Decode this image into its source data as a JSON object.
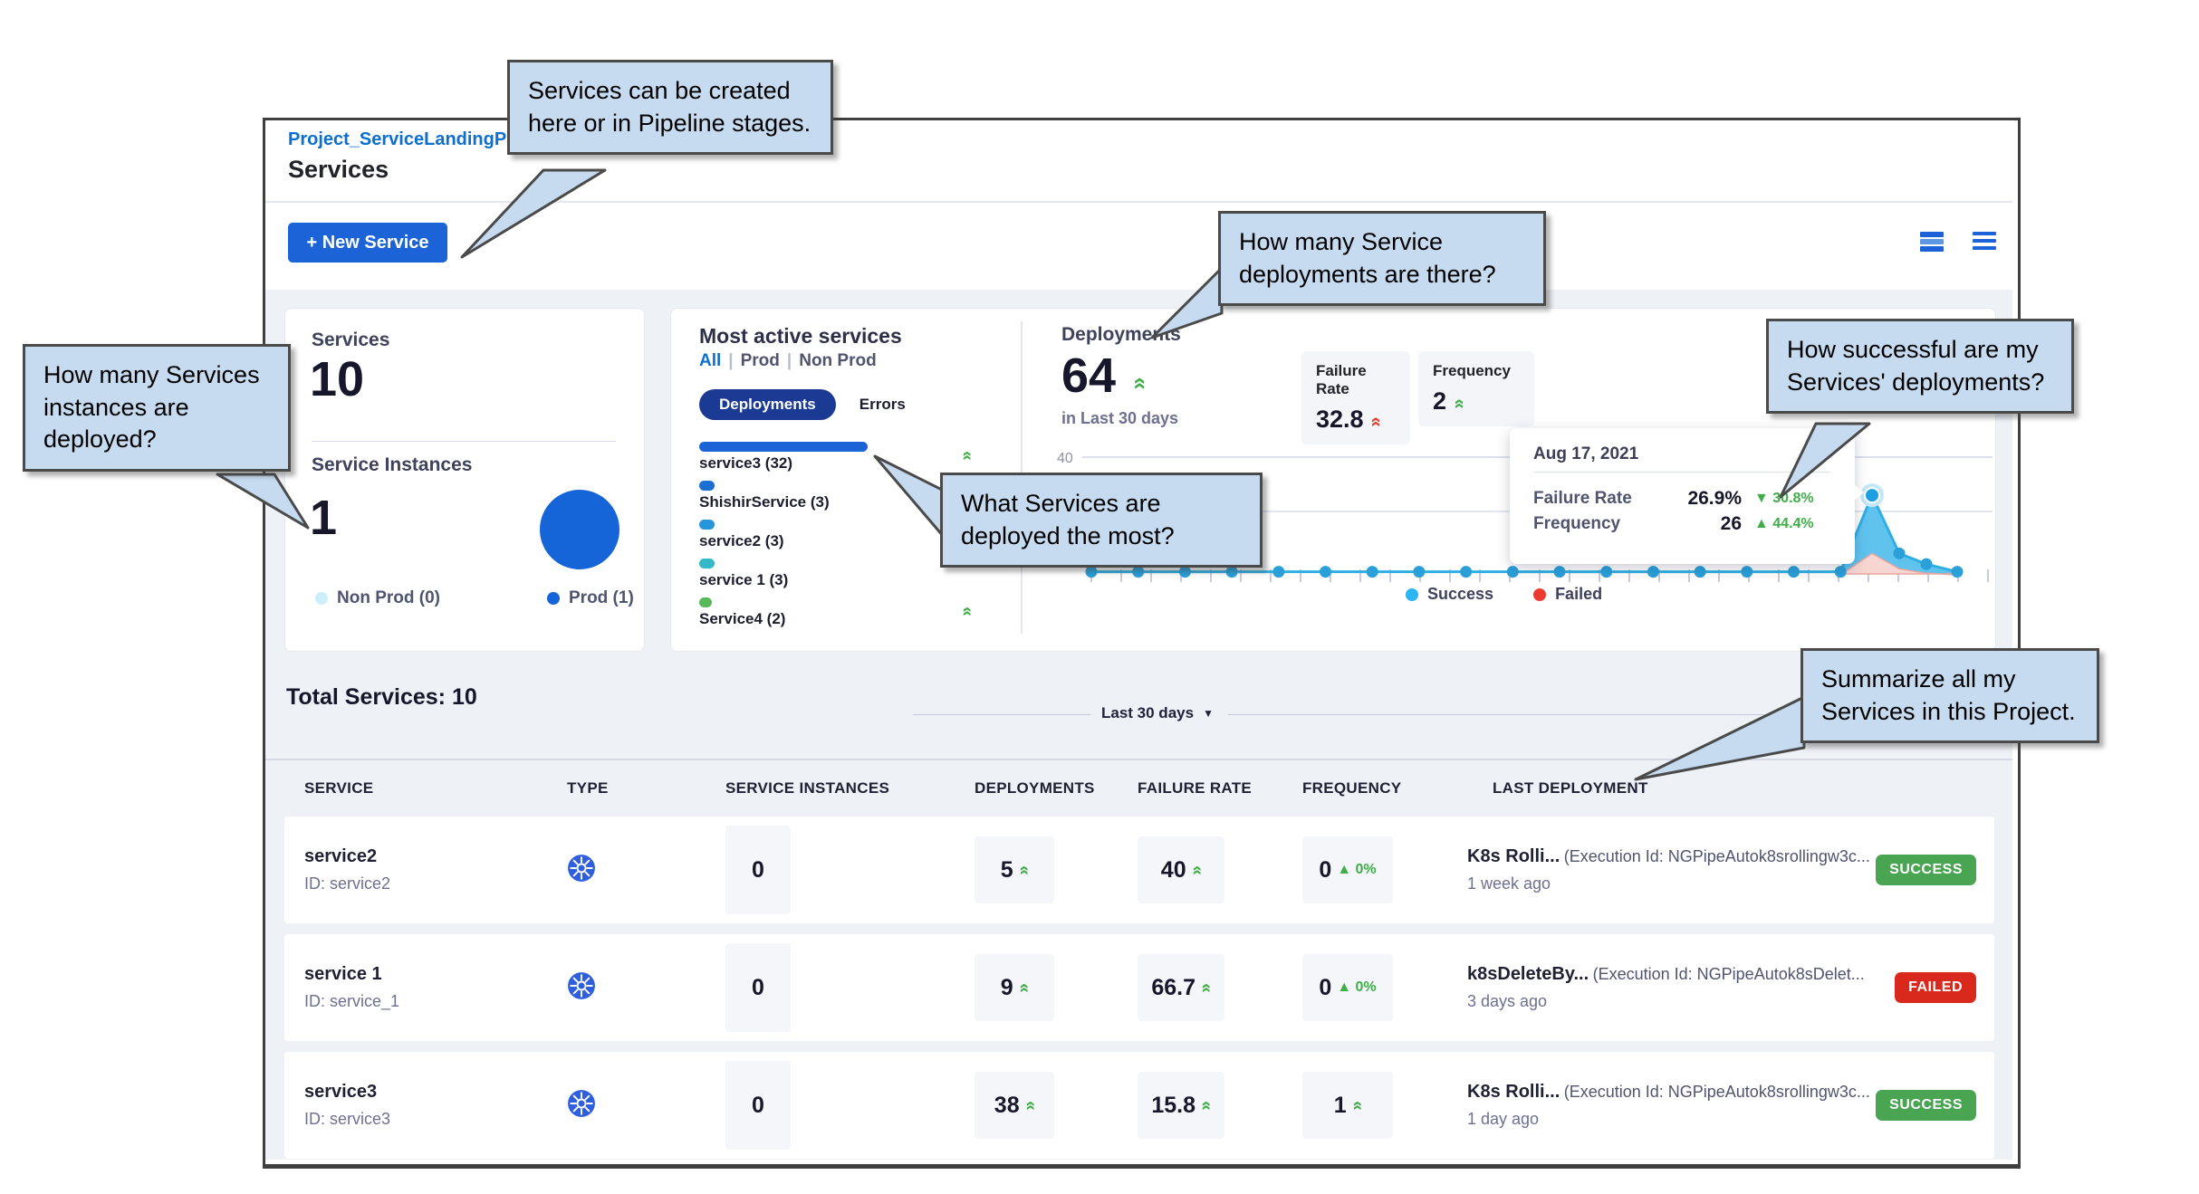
{
  "colors": {
    "accent_blue": "#1b63d6",
    "link_blue": "#0b6fd0",
    "pill_navy": "#1b3a94",
    "pie_prod": "#1565d8",
    "pie_nonprod": "#cdeefb",
    "chart_success": "#2faee3",
    "chart_failed": "#ee3b30",
    "success_badge": "#4aa552",
    "failed_badge": "#d9291c",
    "callout_bg": "#c6dbf0",
    "trend_green": "#3fae49",
    "trend_red": "#e8392b"
  },
  "callouts": {
    "c1": "Services can be created here or in Pipeline stages.",
    "c2": "How many Service deployments are there?",
    "c3": "How successful are my Services' deployments?",
    "c4": "How many Services instances are deployed?",
    "c5": "What Services are deployed the most?",
    "c6": "Summarize all my Services in this Project."
  },
  "header": {
    "breadcrumb": "Project_ServiceLandingPag",
    "title": "Services",
    "new_service_label": "+ New Service"
  },
  "summary": {
    "services_label": "Services",
    "services_count": "10",
    "instances_label": "Service Instances",
    "instances_count": "1",
    "legend": [
      {
        "label": "Non Prod (0)",
        "color": "#cdeefb"
      },
      {
        "label": "Prod (1)",
        "color": "#1565d8"
      }
    ]
  },
  "most_active": {
    "title": "Most active services",
    "filters": [
      "All",
      "Prod",
      "Non Prod"
    ],
    "active_filter": "All",
    "toggle": [
      "Deployments",
      "Errors"
    ],
    "active_toggle": "Deployments",
    "max_value": 32,
    "services": [
      {
        "name": "service3 (32)",
        "value": 32,
        "color": "#1b63d6",
        "trend_up": true
      },
      {
        "name": "ShishirService (3)",
        "value": 3,
        "color": "#1b6fd0",
        "trend_up": false
      },
      {
        "name": "service2 (3)",
        "value": 3,
        "color": "#2795da",
        "trend_up": false
      },
      {
        "name": "service 1 (3)",
        "value": 3,
        "color": "#35b8c8",
        "trend_up": false
      },
      {
        "name": "Service4 (2)",
        "value": 2,
        "color": "#58b95b",
        "trend_up": true
      }
    ]
  },
  "deployments": {
    "label": "Deployments",
    "count": "64",
    "period": "in Last 30 days",
    "failure_rate_label": "Failure Rate",
    "failure_rate": "32.8",
    "frequency_label": "Frequency",
    "frequency": "2",
    "legend": [
      {
        "label": "Success",
        "color": "#2bb5f2"
      },
      {
        "label": "Failed",
        "color": "#ee3b30"
      }
    ]
  },
  "chart_data": {
    "type": "area",
    "title": "Deployments in Last 30 days",
    "xlabel": "",
    "ylabel": "",
    "ylim": [
      0,
      40
    ],
    "gridlines": [
      20,
      40
    ],
    "legend_position": "bottom",
    "series": [
      {
        "name": "Success",
        "color": "#2faee3",
        "values": [
          1,
          1,
          1,
          1,
          1,
          1,
          1,
          1,
          1,
          1,
          1,
          1,
          1,
          1,
          1,
          1,
          1,
          26,
          7,
          3.5,
          1
        ]
      },
      {
        "name": "Failed",
        "color": "#f7d6d2",
        "values": [
          0,
          0,
          0,
          0,
          0,
          0,
          0,
          0,
          0,
          0,
          0,
          0,
          0,
          0,
          0,
          0,
          0,
          7,
          2,
          0.5,
          0
        ]
      }
    ],
    "highlight_index": 17,
    "tooltip": {
      "date": "Aug 17, 2021",
      "failure_rate_label": "Failure Rate",
      "failure_rate": "26.9%",
      "failure_rate_delta": "▼ 30.8%",
      "frequency_label": "Frequency",
      "frequency": "26",
      "frequency_delta": "▲ 44.4%"
    }
  },
  "table": {
    "total_label": "Total Services: 10",
    "period_filter": "Last 30 days",
    "columns": [
      "SERVICE",
      "TYPE",
      "SERVICE INSTANCES",
      "DEPLOYMENTS",
      "FAILURE RATE",
      "FREQUENCY",
      "LAST DEPLOYMENT"
    ],
    "rows": [
      {
        "name": "service2",
        "id": "ID: service2",
        "type": "kubernetes",
        "instances": "0",
        "deployments": "5",
        "failure_rate": "40",
        "frequency": "0",
        "frequency_delta": "0%",
        "last_deployment": "K8s Rolli...",
        "execution": "(Execution Id: NGPipeAutok8srollingw3c...",
        "when": "1 week ago",
        "status": "SUCCESS"
      },
      {
        "name": "service 1",
        "id": "ID: service_1",
        "type": "kubernetes",
        "instances": "0",
        "deployments": "9",
        "failure_rate": "66.7",
        "frequency": "0",
        "frequency_delta": "0%",
        "last_deployment": "k8sDeleteBy...",
        "execution": "(Execution Id: NGPipeAutok8sDelet...",
        "when": "3 days ago",
        "status": "FAILED"
      },
      {
        "name": "service3",
        "id": "ID: service3",
        "type": "kubernetes",
        "instances": "0",
        "deployments": "38",
        "failure_rate": "15.8",
        "frequency": "1",
        "frequency_delta": null,
        "last_deployment": "K8s Rolli...",
        "execution": "(Execution Id: NGPipeAutok8srollingw3c...",
        "when": "1 day ago",
        "status": "SUCCESS"
      }
    ]
  }
}
